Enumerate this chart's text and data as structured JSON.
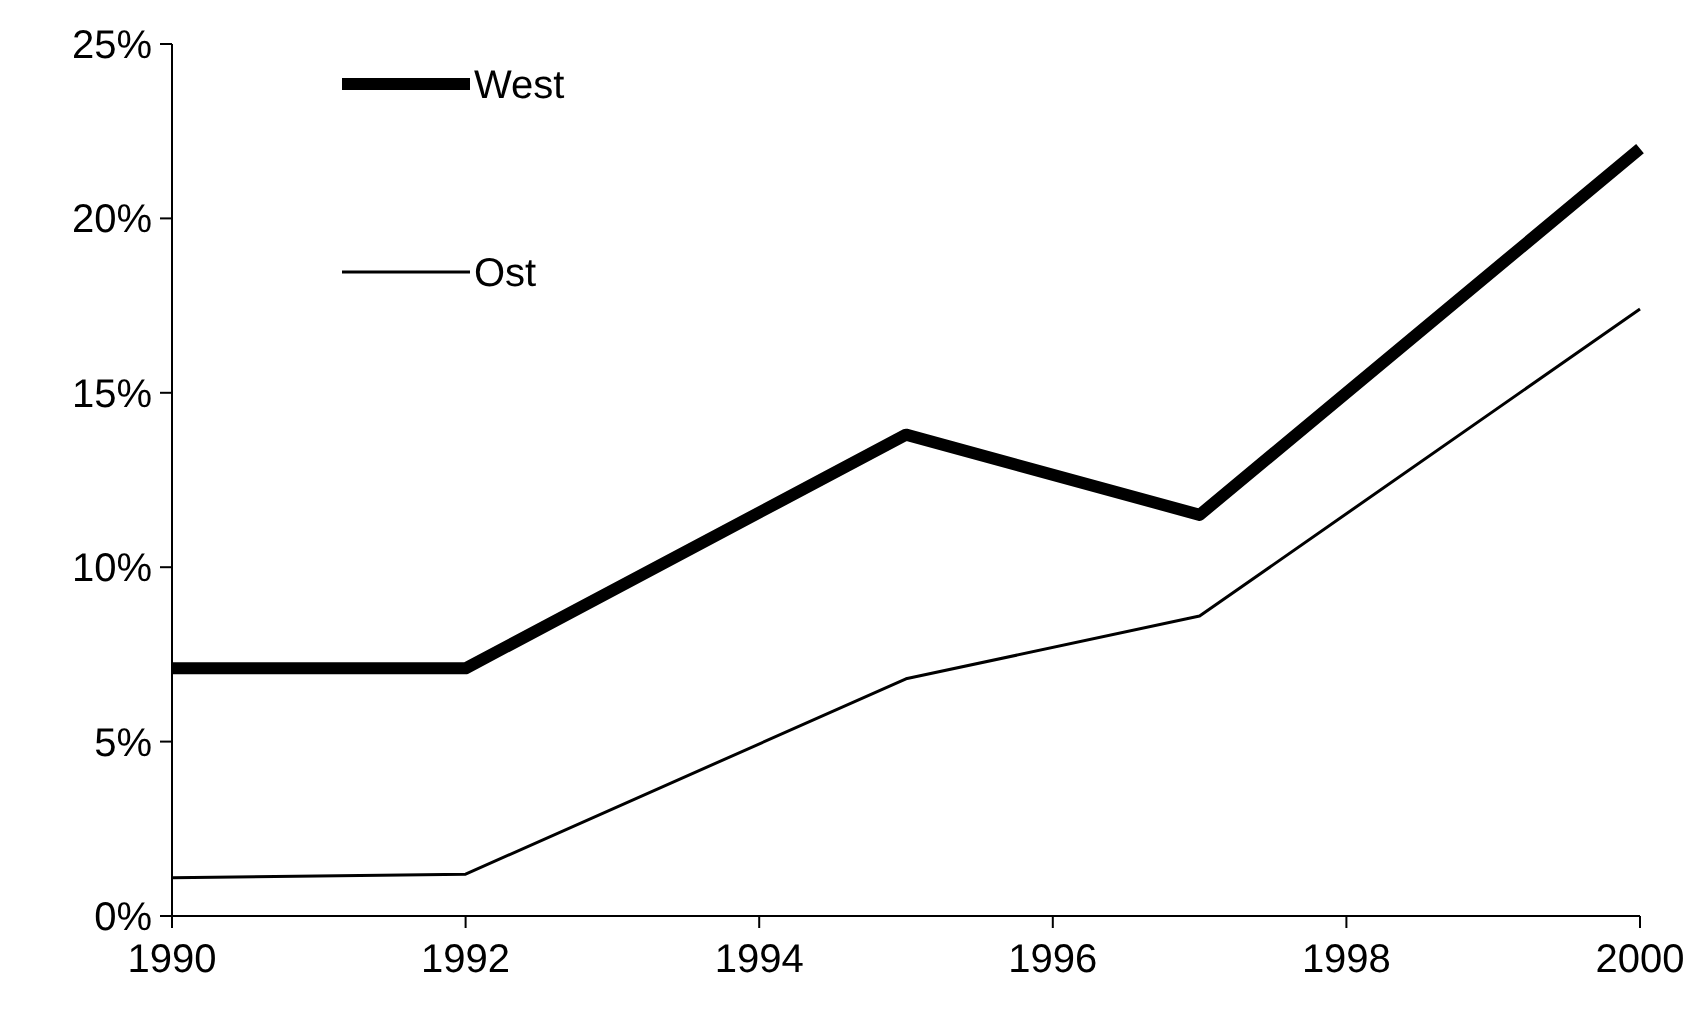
{
  "chart_data": {
    "type": "line",
    "x": [
      1990,
      1992,
      1995,
      1997,
      2000
    ],
    "series": [
      {
        "name": "West",
        "color": "#000000",
        "values": [
          7.1,
          7.1,
          13.8,
          11.5,
          22.0
        ]
      },
      {
        "name": "Ost",
        "color": "#000000",
        "values": [
          1.1,
          1.2,
          6.8,
          8.6,
          17.4
        ]
      }
    ],
    "xlim": [
      1990,
      2000
    ],
    "xticks": [
      1990,
      1992,
      1994,
      1996,
      1998,
      2000
    ],
    "ylim": [
      0,
      25
    ],
    "yticks": [
      {
        "value": 0,
        "label": "0%"
      },
      {
        "value": 5,
        "label": "5%"
      },
      {
        "value": 10,
        "label": "10%"
      },
      {
        "value": 15,
        "label": "15%"
      },
      {
        "value": 20,
        "label": "20%"
      },
      {
        "value": 25,
        "label": "25%"
      }
    ],
    "grid": false,
    "legend": "top left",
    "marker": "none"
  }
}
